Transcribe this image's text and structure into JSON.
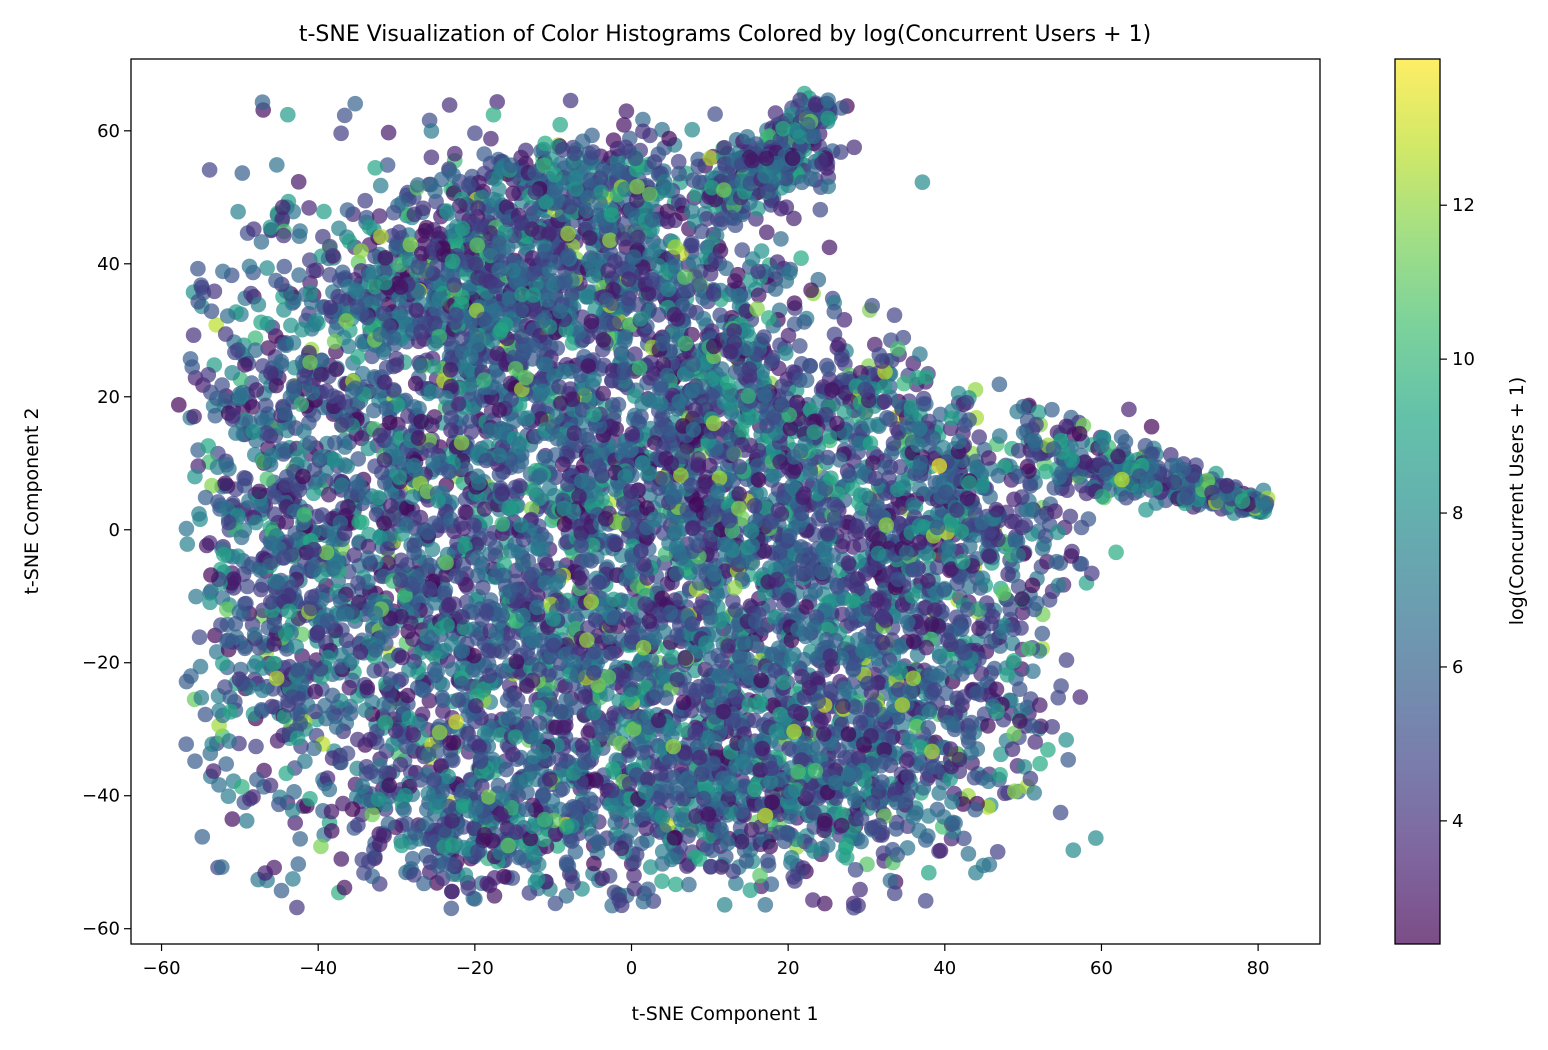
{
  "chart_data": {
    "type": "scatter",
    "title": "t-SNE Visualization of Color Histograms Colored by log(Concurrent Users + 1)",
    "xlabel": "t-SNE Component 1",
    "ylabel": "t-SNE Component 2",
    "xlim": [
      -63.9,
      87.9
    ],
    "ylim": [
      -62.3,
      70.8
    ],
    "x_ticks": [
      -60,
      -40,
      -20,
      0,
      20,
      40,
      60,
      80
    ],
    "x_tick_labels": [
      "−60",
      "−40",
      "−20",
      "0",
      "20",
      "40",
      "60",
      "80"
    ],
    "y_ticks": [
      -60,
      -40,
      -20,
      0,
      20,
      40,
      60
    ],
    "y_tick_labels": [
      "−60",
      "−40",
      "−20",
      "0",
      "20",
      "40",
      "60"
    ],
    "grid": false,
    "colormap": "viridis",
    "marker_alpha": 0.7,
    "colorbar": {
      "label": "log(Concurrent Users + 1)",
      "range": [
        2.4,
        13.9
      ],
      "ticks": [
        4,
        6,
        8,
        10,
        12
      ],
      "tick_labels": [
        "4",
        "6",
        "8",
        "10",
        "12"
      ]
    },
    "notable_points": [
      {
        "x": -57.8,
        "y": 18.8,
        "c": 2.6
      },
      {
        "x": -53.7,
        "y": -6.8,
        "c": 2.6
      },
      {
        "x": -51.5,
        "y": -16.6,
        "c": 5.5
      },
      {
        "x": -38.5,
        "y": 42.6,
        "c": 4.8
      },
      {
        "x": -37.9,
        "y": 28.3,
        "c": 11.5
      },
      {
        "x": -32.0,
        "y": 44.1,
        "c": 12.5
      },
      {
        "x": -22.4,
        "y": -28.9,
        "c": 13.2
      },
      {
        "x": -19.7,
        "y": 42.8,
        "c": 11.0
      },
      {
        "x": -14.8,
        "y": 24.2,
        "c": 11.0
      },
      {
        "x": -15.1,
        "y": 50.6,
        "c": 3.0
      },
      {
        "x": -13.5,
        "y": 22.9,
        "c": 11.2
      },
      {
        "x": -11.1,
        "y": -43.6,
        "c": 10.2
      },
      {
        "x": -1.3,
        "y": -47.9,
        "c": 3.3
      },
      {
        "x": 0.7,
        "y": 51.6,
        "c": 11.8
      },
      {
        "x": 6.8,
        "y": 38.0,
        "c": 11.0
      },
      {
        "x": 11.8,
        "y": 51.1,
        "c": 11.5
      },
      {
        "x": 11.9,
        "y": -56.4,
        "c": 7.5
      },
      {
        "x": 13.7,
        "y": 3.2,
        "c": 11.8
      },
      {
        "x": 14.9,
        "y": 20.1,
        "c": 10.0
      },
      {
        "x": 16.4,
        "y": -52.0,
        "c": 10.8
      },
      {
        "x": 17.1,
        "y": -43.0,
        "c": 13.0
      },
      {
        "x": 25.1,
        "y": 64.6,
        "c": 6.5
      },
      {
        "x": 30.5,
        "y": 13.0,
        "c": 9.0
      },
      {
        "x": 34.0,
        "y": 27.2,
        "c": 10.5
      },
      {
        "x": 39.3,
        "y": 9.6,
        "c": 13.8
      },
      {
        "x": 45.5,
        "y": -29.5,
        "c": 2.8
      },
      {
        "x": 46.6,
        "y": -24.0,
        "c": 3.0
      },
      {
        "x": 50.7,
        "y": -17.9,
        "c": 10.5
      },
      {
        "x": 54.4,
        "y": -0.4,
        "c": 8.2
      },
      {
        "x": 63.5,
        "y": 18.1,
        "c": 3.5
      },
      {
        "x": 66.4,
        "y": 15.5,
        "c": 2.6
      },
      {
        "x": 78.0,
        "y": 4.3,
        "c": 9.5
      },
      {
        "x": 80.9,
        "y": 3.4,
        "c": 7.0
      }
    ]
  }
}
